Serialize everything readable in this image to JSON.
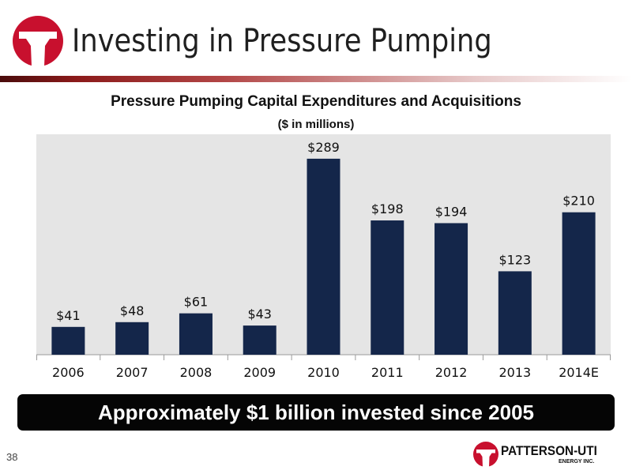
{
  "slide": {
    "title": "Investing in Pressure Pumping",
    "banner": "Approximately $1 billion invested since 2005",
    "page_number": "38",
    "brand": {
      "name": "PATTERSON-UTI",
      "sub": "ENERGY INC."
    },
    "colors": {
      "accent": "#c8102e",
      "bar": "#14264a",
      "plot_bg": "#e5e5e5",
      "banner_bg": "#050505"
    }
  },
  "chart_data": {
    "type": "bar",
    "title": "Pressure Pumping Capital Expenditures and Acquisitions",
    "subtitle": "($ in millions)",
    "xlabel": "",
    "ylabel": "",
    "categories": [
      "2006",
      "2007",
      "2008",
      "2009",
      "2010",
      "2011",
      "2012",
      "2013",
      "2014E"
    ],
    "values": [
      41,
      48,
      61,
      43,
      289,
      198,
      194,
      123,
      210
    ],
    "data_labels": [
      "$41",
      "$48",
      "$61",
      "$43",
      "$289",
      "$198",
      "$194",
      "$123",
      "$210"
    ],
    "ylim": [
      0,
      325
    ],
    "grid": false,
    "legend": "none"
  }
}
